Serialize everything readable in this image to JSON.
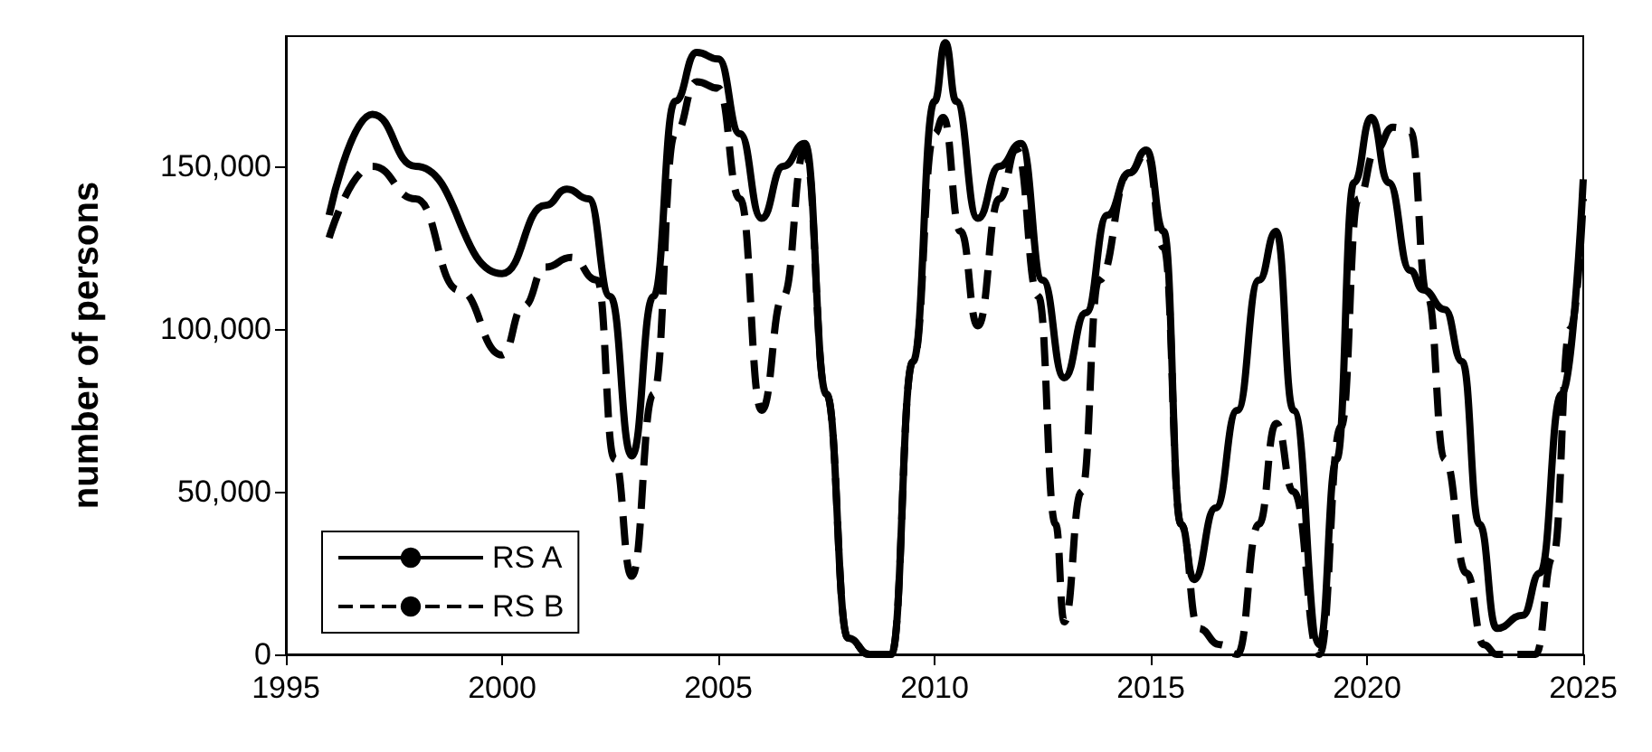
{
  "chart_data": {
    "type": "line",
    "ylabel": "number of persons",
    "xlim": [
      1995,
      2025
    ],
    "xticks": [
      {
        "value": 1995,
        "label": "1995"
      },
      {
        "value": 2000,
        "label": "2000"
      },
      {
        "value": 2005,
        "label": "2005"
      },
      {
        "value": 2010,
        "label": "2010"
      },
      {
        "value": 2015,
        "label": "2015"
      },
      {
        "value": 2020,
        "label": "2020"
      },
      {
        "value": 2025,
        "label": "2025"
      }
    ],
    "ylim": [
      0,
      190000
    ],
    "yticks": [
      0,
      {
        "value": 50000,
        "label": "50,000"
      },
      {
        "value": 100000,
        "label": "100,000"
      },
      {
        "value": 150000,
        "label": "150,000"
      }
    ],
    "grid": false,
    "legend": "bottom left",
    "marker": "none",
    "series": [
      {
        "name": "RS A",
        "color": "#000000",
        "line_style": "solid",
        "x": [
          1996,
          1997,
          1998,
          2000,
          2001,
          2001.5,
          2002,
          2002.5,
          2003,
          2003.5,
          2004,
          2004.5,
          2005,
          2005.5,
          2006,
          2006.5,
          2007,
          2007.5,
          2008,
          2008.5,
          2009,
          2009.5,
          2010,
          2010.25,
          2010.5,
          2011,
          2011.5,
          2012,
          2012.5,
          2013,
          2013.5,
          2014,
          2014.5,
          2014.9,
          2015.3,
          2015.7,
          2016,
          2016.5,
          2017,
          2017.5,
          2017.9,
          2018.3,
          2018.9,
          2019.3,
          2019.7,
          2020.1,
          2020.5,
          2021,
          2021.3,
          2021.8,
          2022.2,
          2022.6,
          2023,
          2023.6,
          2024,
          2024.5,
          2025
        ],
        "values": [
          135000,
          166000,
          150000,
          117000,
          138000,
          143000,
          140000,
          110000,
          61000,
          110000,
          170000,
          185000,
          183000,
          160000,
          134000,
          150000,
          157000,
          80000,
          5000,
          0,
          0,
          90000,
          170000,
          188000,
          170000,
          134000,
          150000,
          157000,
          115000,
          85000,
          105000,
          135000,
          148000,
          155000,
          130000,
          40000,
          23000,
          45000,
          75000,
          115000,
          130000,
          75000,
          3000,
          60000,
          145000,
          165000,
          145000,
          118000,
          112000,
          106000,
          90000,
          40000,
          8000,
          12000,
          25000,
          80000,
          146000
        ]
      },
      {
        "name": "RS B",
        "color": "#000000",
        "line_style": "dashed",
        "x": [
          1996,
          1997,
          1998,
          1999,
          2000,
          2000.5,
          2001,
          2001.6,
          2002.2,
          2002.6,
          2003,
          2003.5,
          2004,
          2004.5,
          2005,
          2005.5,
          2006,
          2006.5,
          2007,
          2007.5,
          2008,
          2008.5,
          2009,
          2009.5,
          2010,
          2010.2,
          2010.6,
          2011,
          2011.5,
          2011.9,
          2012.4,
          2012.8,
          2013,
          2013.4,
          2013.8,
          2014.5,
          2014.9,
          2015.3,
          2015.7,
          2016.1,
          2016.6,
          2017,
          2017.5,
          2017.9,
          2018.3,
          2018.9,
          2019.4,
          2019.8,
          2020.2,
          2020.6,
          2021,
          2021.4,
          2021.8,
          2022.3,
          2022.7,
          2023,
          2023.9,
          2024.3,
          2024.7,
          2025
        ],
        "values": [
          128000,
          150000,
          140000,
          112000,
          92000,
          107000,
          119000,
          122000,
          115000,
          60000,
          24000,
          80000,
          160000,
          176000,
          174000,
          140000,
          75000,
          110000,
          155000,
          80000,
          5000,
          0,
          0,
          90000,
          160000,
          165000,
          130000,
          101000,
          140000,
          155000,
          110000,
          40000,
          10000,
          50000,
          115000,
          148000,
          154000,
          125000,
          40000,
          8000,
          3000,
          0,
          40000,
          71000,
          50000,
          0,
          70000,
          140000,
          155000,
          162000,
          161000,
          110000,
          60000,
          25000,
          3000,
          0,
          0,
          30000,
          100000,
          140000
        ]
      }
    ]
  }
}
